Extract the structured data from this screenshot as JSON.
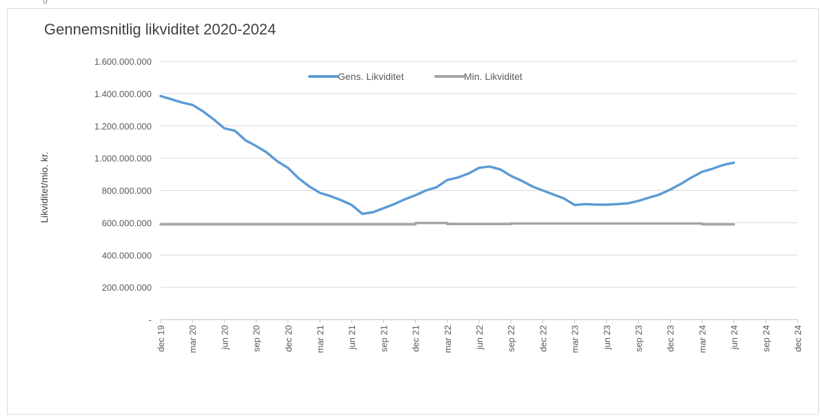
{
  "header_fragment": "g",
  "chart_data": {
    "type": "line",
    "title": "Gennemsnitlig likviditet 2020-2024",
    "ylabel": "Likviditet/mio. kr.",
    "xlabel": "",
    "ylim": [
      0,
      1600000000
    ],
    "yticks": [
      {
        "value": 0,
        "label": "-"
      },
      {
        "value": 200000000,
        "label": "200.000.000"
      },
      {
        "value": 400000000,
        "label": "400.000.000"
      },
      {
        "value": 600000000,
        "label": "600.000.000"
      },
      {
        "value": 800000000,
        "label": "800.000.000"
      },
      {
        "value": 1000000000,
        "label": "1.000.000.000"
      },
      {
        "value": 1200000000,
        "label": "1.200.000.000"
      },
      {
        "value": 1400000000,
        "label": "1.400.000.000"
      },
      {
        "value": 1600000000,
        "label": "1.600.000.000"
      }
    ],
    "xrange": [
      "2019-12",
      "2024-12"
    ],
    "xticks": [
      {
        "date": "2019-12",
        "label": "dec 19"
      },
      {
        "date": "2020-03",
        "label": "mar 20"
      },
      {
        "date": "2020-06",
        "label": "jun 20"
      },
      {
        "date": "2020-09",
        "label": "sep 20"
      },
      {
        "date": "2020-12",
        "label": "dec 20"
      },
      {
        "date": "2021-03",
        "label": "mar 21"
      },
      {
        "date": "2021-06",
        "label": "jun 21"
      },
      {
        "date": "2021-09",
        "label": "sep 21"
      },
      {
        "date": "2021-12",
        "label": "dec 21"
      },
      {
        "date": "2022-03",
        "label": "mar 22"
      },
      {
        "date": "2022-06",
        "label": "jun 22"
      },
      {
        "date": "2022-09",
        "label": "sep 22"
      },
      {
        "date": "2022-12",
        "label": "dec 22"
      },
      {
        "date": "2023-03",
        "label": "mar 23"
      },
      {
        "date": "2023-06",
        "label": "jun 23"
      },
      {
        "date": "2023-09",
        "label": "sep 23"
      },
      {
        "date": "2023-12",
        "label": "dec 23"
      },
      {
        "date": "2024-03",
        "label": "mar 24"
      },
      {
        "date": "2024-06",
        "label": "jun 24"
      },
      {
        "date": "2024-09",
        "label": "sep 24"
      },
      {
        "date": "2024-12",
        "label": "dec 24"
      }
    ],
    "grid": true,
    "legend": "top-center",
    "series": [
      {
        "name": "Gens. Likviditet",
        "color": "#5b9bd5",
        "points": [
          [
            "2019-12",
            1385000000
          ],
          [
            "2020-01",
            1365000000
          ],
          [
            "2020-02",
            1345000000
          ],
          [
            "2020-03",
            1330000000
          ],
          [
            "2020-04",
            1290000000
          ],
          [
            "2020-05",
            1240000000
          ],
          [
            "2020-06",
            1185000000
          ],
          [
            "2020-07",
            1170000000
          ],
          [
            "2020-08",
            1110000000
          ],
          [
            "2020-09",
            1075000000
          ],
          [
            "2020-10",
            1035000000
          ],
          [
            "2020-11",
            980000000
          ],
          [
            "2020-12",
            940000000
          ],
          [
            "2021-01",
            875000000
          ],
          [
            "2021-02",
            825000000
          ],
          [
            "2021-03",
            785000000
          ],
          [
            "2021-04",
            765000000
          ],
          [
            "2021-05",
            740000000
          ],
          [
            "2021-06",
            710000000
          ],
          [
            "2021-07",
            655000000
          ],
          [
            "2021-08",
            665000000
          ],
          [
            "2021-09",
            690000000
          ],
          [
            "2021-10",
            715000000
          ],
          [
            "2021-11",
            745000000
          ],
          [
            "2021-12",
            770000000
          ],
          [
            "2022-01",
            800000000
          ],
          [
            "2022-02",
            820000000
          ],
          [
            "2022-03",
            865000000
          ],
          [
            "2022-04",
            880000000
          ],
          [
            "2022-05",
            905000000
          ],
          [
            "2022-06",
            940000000
          ],
          [
            "2022-07",
            948000000
          ],
          [
            "2022-08",
            930000000
          ],
          [
            "2022-09",
            890000000
          ],
          [
            "2022-10",
            860000000
          ],
          [
            "2022-11",
            825000000
          ],
          [
            "2022-12",
            800000000
          ],
          [
            "2023-01",
            775000000
          ],
          [
            "2023-02",
            750000000
          ],
          [
            "2023-03",
            710000000
          ],
          [
            "2023-04",
            715000000
          ],
          [
            "2023-05",
            712000000
          ],
          [
            "2023-06",
            712000000
          ],
          [
            "2023-07",
            715000000
          ],
          [
            "2023-08",
            720000000
          ],
          [
            "2023-09",
            735000000
          ],
          [
            "2023-10",
            755000000
          ],
          [
            "2023-11",
            775000000
          ],
          [
            "2023-12",
            805000000
          ],
          [
            "2024-01",
            840000000
          ],
          [
            "2024-02",
            880000000
          ],
          [
            "2024-03",
            915000000
          ],
          [
            "2024-04",
            935000000
          ],
          [
            "2024-05",
            958000000
          ],
          [
            "2024-06",
            972000000
          ]
        ]
      },
      {
        "name": "Min. Likviditet",
        "color": "#a5a5a5",
        "points": [
          [
            "2019-12",
            590000000
          ],
          [
            "2021-12",
            590000000
          ],
          [
            "2021-12",
            598000000
          ],
          [
            "2022-03",
            598000000
          ],
          [
            "2022-03",
            592000000
          ],
          [
            "2022-09",
            592000000
          ],
          [
            "2022-09",
            595000000
          ],
          [
            "2024-03",
            595000000
          ],
          [
            "2024-03",
            590000000
          ],
          [
            "2024-06",
            590000000
          ]
        ]
      }
    ]
  }
}
